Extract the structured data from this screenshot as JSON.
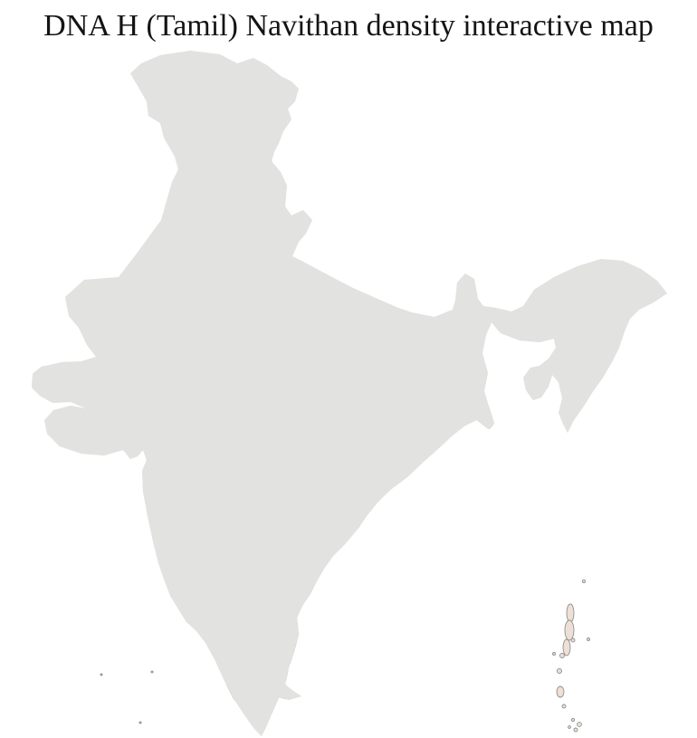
{
  "title": "DNA H (Tamil) Navithan density interactive map",
  "map": {
    "label": "India district-level density choropleth",
    "palette": {
      "background": "#ffffff",
      "no_data": "#e2e2e1",
      "density_1": "#f4ddd0",
      "density_2": "#ecc8b1",
      "density_3": "#d89a77",
      "density_4": "#c97a52",
      "density_5": "#bc6034",
      "density_6": "#aa4a1e",
      "density_7": "#993807",
      "kerala_strip": "#f7e9df",
      "pale_blue_district": "#e3e6eb",
      "dark_area": "#7c7c7c",
      "district_border": "#ffffff",
      "state_border": "#8d8d8d",
      "island_fill": "#eee0d6",
      "island_dot": "#999999"
    }
  }
}
